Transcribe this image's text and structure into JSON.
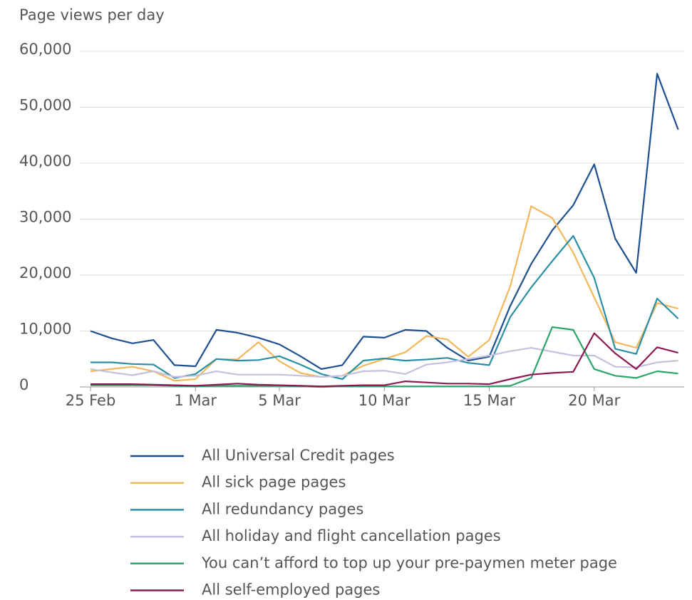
{
  "chart_data": {
    "type": "line",
    "title": "Page views per day",
    "categories": [
      "25 Feb",
      null,
      null,
      null,
      null,
      "1 Mar",
      null,
      null,
      null,
      "5 Mar",
      null,
      null,
      null,
      null,
      "10 Mar",
      null,
      null,
      null,
      null,
      "15 Mar",
      null,
      null,
      null,
      null,
      "20 Mar",
      null,
      null,
      null,
      null
    ],
    "series": [
      {
        "name": "All Universal Credit pages",
        "color": "#1d4f91",
        "values": [
          10000,
          8700,
          7800,
          8400,
          3900,
          3700,
          10200,
          9700,
          8800,
          7600,
          5500,
          3200,
          3900,
          9000,
          8800,
          10200,
          10000,
          7000,
          4700,
          5400,
          14500,
          22000,
          28000,
          32500,
          39800,
          26500,
          20400,
          56000,
          46000
        ]
      },
      {
        "name": "All sick page pages",
        "color": "#f2b85a",
        "values": [
          2800,
          3200,
          3600,
          2800,
          1100,
          1400,
          5000,
          4900,
          8000,
          4600,
          2500,
          1800,
          2000,
          3800,
          5000,
          6200,
          9100,
          8500,
          5400,
          8400,
          18000,
          32300,
          30200,
          24000,
          16000,
          8000,
          7000,
          15000,
          14000
        ]
      },
      {
        "name": "All redundancy pages",
        "color": "#2a8fa6",
        "values": [
          4400,
          4400,
          4100,
          4000,
          1600,
          2300,
          5000,
          4700,
          4800,
          5500,
          4000,
          2300,
          1400,
          4700,
          5100,
          4700,
          4900,
          5200,
          4300,
          3900,
          12500,
          17800,
          22500,
          27000,
          19500,
          6800,
          5900,
          15800,
          12200
        ]
      },
      {
        "name": "All holiday and flight cancellation pages",
        "color": "#c5c0de",
        "values": [
          3200,
          2600,
          2100,
          2800,
          1800,
          2000,
          2800,
          2200,
          2200,
          2200,
          2000,
          1800,
          2000,
          2800,
          2900,
          2300,
          4000,
          4400,
          5000,
          5600,
          6400,
          7000,
          6300,
          5600,
          5600,
          3600,
          3500,
          4400,
          4700
        ]
      },
      {
        "name": "You can’t afford to top up your pre-paymen meter page",
        "color": "#2aa56a",
        "values": [
          300,
          300,
          300,
          300,
          200,
          100,
          200,
          200,
          200,
          200,
          100,
          0,
          100,
          100,
          100,
          100,
          100,
          100,
          100,
          100,
          200,
          1600,
          10700,
          10200,
          3200,
          2000,
          1600,
          2800,
          2400
        ]
      },
      {
        "name": "All self-employed pages",
        "color": "#8a1a4f",
        "values": [
          500,
          500,
          500,
          400,
          300,
          200,
          400,
          600,
          400,
          300,
          200,
          100,
          200,
          300,
          300,
          1000,
          800,
          600,
          600,
          500,
          1400,
          2200,
          2500,
          2700,
          9600,
          6000,
          3200,
          7100,
          6100
        ]
      }
    ],
    "ylim": [
      0,
      60000
    ],
    "yticks": [
      0,
      {
        "value": 10000,
        "label": "10,000"
      },
      {
        "value": 20000,
        "label": "20,000"
      },
      {
        "value": 30000,
        "label": "30,000"
      },
      {
        "value": 40000,
        "label": "40,000"
      },
      {
        "value": 50000,
        "label": "50,000"
      },
      {
        "value": 60000,
        "label": "60,000"
      }
    ],
    "grid": true
  }
}
